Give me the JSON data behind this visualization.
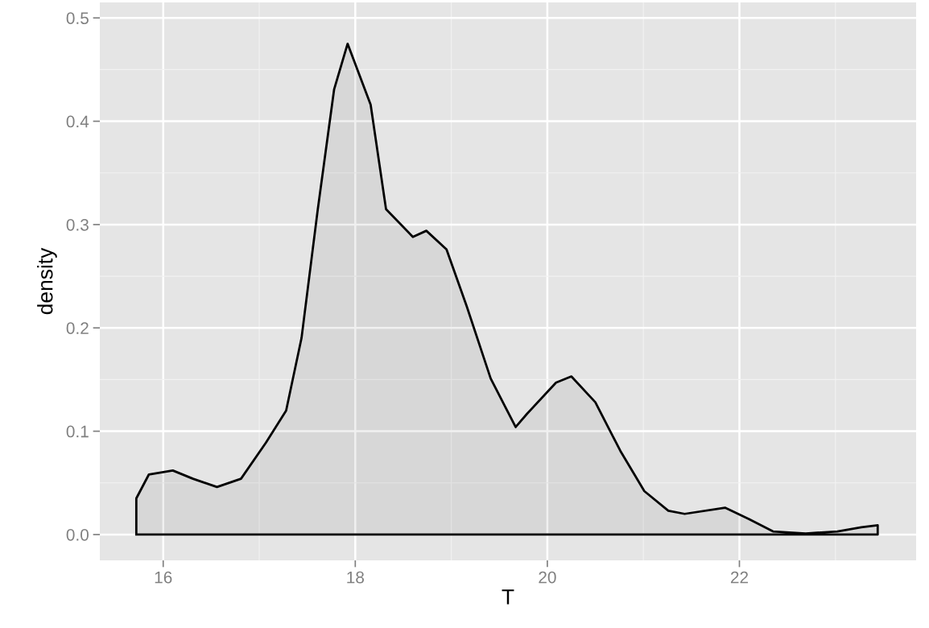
{
  "chart_data": {
    "type": "area",
    "xlabel": "T",
    "ylabel": "density",
    "series": [
      {
        "color": "#000000",
        "x": [
          15.72,
          15.85,
          16.1,
          16.31,
          16.56,
          16.81,
          17.07,
          17.28,
          17.44,
          17.61,
          17.78,
          17.92,
          18.16,
          18.32,
          18.6,
          18.74,
          18.95,
          19.16,
          19.41,
          19.67,
          19.79,
          20.09,
          20.25,
          20.5,
          20.76,
          21.01,
          21.26,
          21.43,
          21.85,
          22.1,
          22.35,
          22.69,
          23.02,
          23.27,
          23.44
        ],
        "values": [
          0.035,
          0.058,
          0.062,
          0.054,
          0.046,
          0.054,
          0.089,
          0.12,
          0.19,
          0.315,
          0.431,
          0.475,
          0.416,
          0.315,
          0.288,
          0.294,
          0.276,
          0.221,
          0.151,
          0.104,
          0.117,
          0.147,
          0.153,
          0.128,
          0.081,
          0.042,
          0.023,
          0.02,
          0.026,
          0.015,
          0.003,
          0.001,
          0.003,
          0.007,
          0.009
        ]
      }
    ],
    "xlim": [
      15.34,
      23.84
    ],
    "ylim": [
      -0.025,
      0.515
    ],
    "xticks": [
      16,
      18,
      20,
      22
    ],
    "yticks": [
      {
        "value": 0,
        "label": "0.0"
      },
      {
        "value": 0.1,
        "label": "0.1"
      },
      {
        "value": 0.2,
        "label": "0.2"
      },
      {
        "value": 0.3,
        "label": "0.3"
      },
      {
        "value": 0.4,
        "label": "0.4"
      },
      {
        "value": 0.5,
        "label": "0.5"
      }
    ],
    "grid": true
  }
}
